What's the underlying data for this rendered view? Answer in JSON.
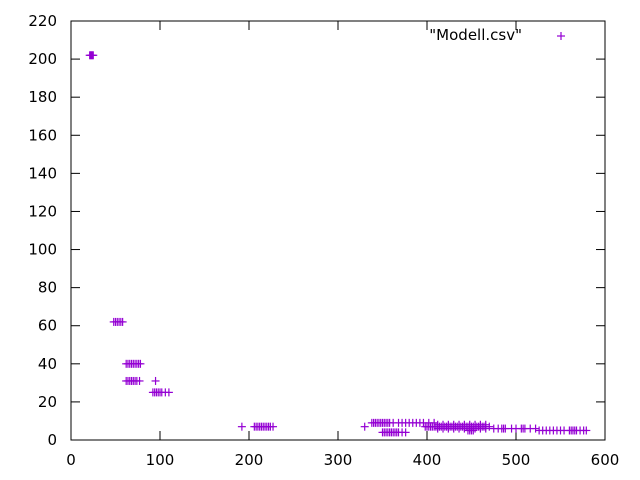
{
  "chart_data": {
    "type": "scatter",
    "title": "",
    "xlabel": "",
    "ylabel": "",
    "xlim": [
      0,
      600
    ],
    "ylim": [
      0,
      220
    ],
    "x_ticks": [
      0,
      100,
      200,
      300,
      400,
      500,
      600
    ],
    "y_ticks": [
      0,
      20,
      40,
      60,
      80,
      100,
      120,
      140,
      160,
      180,
      200,
      220
    ],
    "grid": false,
    "legend_position": "top-right",
    "marker": "plus",
    "colors": {
      "series": "#9400d3",
      "axis": "#000000"
    },
    "series": [
      {
        "name": "\"Modell.csv\"",
        "points": [
          [
            21,
            202
          ],
          [
            22,
            202
          ],
          [
            23,
            202
          ],
          [
            24,
            202
          ],
          [
            25,
            202
          ],
          [
            48,
            62
          ],
          [
            50,
            62
          ],
          [
            52,
            62
          ],
          [
            54,
            62
          ],
          [
            56,
            62
          ],
          [
            58,
            62
          ],
          [
            62,
            40
          ],
          [
            64,
            40
          ],
          [
            66,
            40
          ],
          [
            68,
            40
          ],
          [
            70,
            40
          ],
          [
            72,
            40
          ],
          [
            74,
            40
          ],
          [
            76,
            40
          ],
          [
            78,
            40
          ],
          [
            62,
            31
          ],
          [
            64,
            31
          ],
          [
            66,
            31
          ],
          [
            68,
            31
          ],
          [
            70,
            31
          ],
          [
            72,
            31
          ],
          [
            74,
            31
          ],
          [
            77,
            31
          ],
          [
            95,
            31
          ],
          [
            92,
            25
          ],
          [
            94,
            25
          ],
          [
            96,
            25
          ],
          [
            98,
            25
          ],
          [
            100,
            25
          ],
          [
            102,
            25
          ],
          [
            106,
            25
          ],
          [
            110,
            25
          ],
          [
            192,
            7
          ],
          [
            206,
            7
          ],
          [
            208,
            7
          ],
          [
            210,
            7
          ],
          [
            212,
            7
          ],
          [
            214,
            7
          ],
          [
            216,
            7
          ],
          [
            218,
            7
          ],
          [
            220,
            7
          ],
          [
            222,
            7
          ],
          [
            224,
            7
          ],
          [
            227,
            7
          ],
          [
            330,
            7
          ],
          [
            338,
            9
          ],
          [
            340,
            9
          ],
          [
            342,
            9
          ],
          [
            344,
            9
          ],
          [
            346,
            9
          ],
          [
            348,
            9
          ],
          [
            350,
            9
          ],
          [
            352,
            9
          ],
          [
            354,
            9
          ],
          [
            356,
            9
          ],
          [
            358,
            9
          ],
          [
            362,
            9
          ],
          [
            350,
            4
          ],
          [
            352,
            4
          ],
          [
            354,
            4
          ],
          [
            356,
            4
          ],
          [
            358,
            4
          ],
          [
            360,
            4
          ],
          [
            362,
            4
          ],
          [
            364,
            4
          ],
          [
            366,
            4
          ],
          [
            368,
            4
          ],
          [
            372,
            4
          ],
          [
            376,
            4
          ],
          [
            368,
            9
          ],
          [
            372,
            9
          ],
          [
            376,
            9
          ],
          [
            380,
            9
          ],
          [
            384,
            9
          ],
          [
            388,
            9
          ],
          [
            392,
            9
          ],
          [
            396,
            9
          ],
          [
            402,
            9
          ],
          [
            408,
            9
          ],
          [
            398,
            7
          ],
          [
            400,
            7
          ],
          [
            402,
            7
          ],
          [
            404,
            7
          ],
          [
            406,
            7
          ],
          [
            408,
            7
          ],
          [
            410,
            7
          ],
          [
            412,
            7
          ],
          [
            414,
            7
          ],
          [
            416,
            7
          ],
          [
            418,
            7
          ],
          [
            420,
            7
          ],
          [
            422,
            7
          ],
          [
            424,
            7
          ],
          [
            426,
            7
          ],
          [
            428,
            7
          ],
          [
            430,
            7
          ],
          [
            432,
            7
          ],
          [
            434,
            7
          ],
          [
            436,
            7
          ],
          [
            438,
            7
          ],
          [
            440,
            7
          ],
          [
            442,
            7
          ],
          [
            444,
            7
          ],
          [
            446,
            7
          ],
          [
            448,
            7
          ],
          [
            450,
            7
          ],
          [
            452,
            7
          ],
          [
            454,
            7
          ],
          [
            456,
            7
          ],
          [
            458,
            7
          ],
          [
            460,
            7
          ],
          [
            462,
            7
          ],
          [
            464,
            7
          ],
          [
            466,
            7
          ],
          [
            470,
            7
          ],
          [
            412,
            6
          ],
          [
            418,
            6
          ],
          [
            424,
            6
          ],
          [
            430,
            6
          ],
          [
            436,
            6
          ],
          [
            442,
            6
          ],
          [
            448,
            6
          ],
          [
            454,
            6
          ],
          [
            460,
            6
          ],
          [
            466,
            6
          ],
          [
            412,
            8
          ],
          [
            418,
            8
          ],
          [
            424,
            8
          ],
          [
            430,
            8
          ],
          [
            436,
            8
          ],
          [
            442,
            8
          ],
          [
            448,
            8
          ],
          [
            454,
            8
          ],
          [
            460,
            8
          ],
          [
            466,
            8
          ],
          [
            446,
            5
          ],
          [
            448,
            5
          ],
          [
            450,
            5
          ],
          [
            452,
            5
          ],
          [
            475,
            6
          ],
          [
            480,
            6
          ],
          [
            484,
            6
          ],
          [
            486,
            6
          ],
          [
            488,
            6
          ],
          [
            495,
            6
          ],
          [
            500,
            6
          ],
          [
            506,
            6
          ],
          [
            508,
            6
          ],
          [
            510,
            6
          ],
          [
            516,
            6
          ],
          [
            522,
            6
          ],
          [
            526,
            5
          ],
          [
            530,
            5
          ],
          [
            534,
            5
          ],
          [
            538,
            5
          ],
          [
            542,
            5
          ],
          [
            546,
            5
          ],
          [
            550,
            5
          ],
          [
            554,
            5
          ],
          [
            560,
            5
          ],
          [
            562,
            5
          ],
          [
            564,
            5
          ],
          [
            566,
            5
          ],
          [
            568,
            5
          ],
          [
            572,
            5
          ],
          [
            576,
            5
          ],
          [
            579,
            5
          ]
        ]
      }
    ]
  }
}
